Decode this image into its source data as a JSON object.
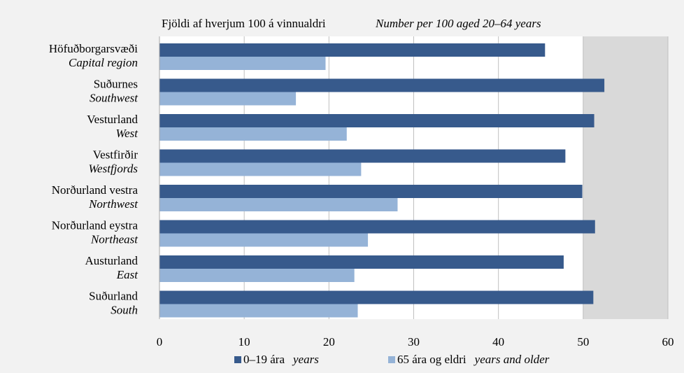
{
  "chart_data": {
    "type": "hbar",
    "title": "Fjöldi af hverjum 100 á vinnualdri",
    "subtitle": "Number per 100 aged 20–64 years",
    "categories": [
      "Höfuðborgarsvæði",
      "Suðurnes",
      "Vesturland",
      "Vestfirðir",
      "Norðurland vestra",
      "Norðurland eystra",
      "Austurland",
      "Suðurland"
    ],
    "category_translations": [
      "Capital region",
      "Southwest",
      "West",
      "Westfjords",
      "Northwest",
      "Northeast",
      "East",
      "South"
    ],
    "series": [
      {
        "name": "0–19 ára",
        "name_translation": "years",
        "color": "#375a8c",
        "values": [
          45.5,
          52.5,
          51.3,
          47.9,
          49.9,
          51.4,
          47.7,
          51.2
        ]
      },
      {
        "name": "65 ára og eldri",
        "name_translation": "years and older",
        "color": "#95b3d7",
        "values": [
          19.6,
          16.1,
          22.1,
          23.8,
          28.1,
          24.6,
          23.0,
          23.4
        ]
      }
    ],
    "xlim": [
      0,
      60
    ],
    "xticks": [
      0,
      10,
      20,
      30,
      40,
      50,
      60
    ],
    "grid": true,
    "shaded_xrange": [
      50,
      60
    ],
    "legend": "bottom"
  }
}
